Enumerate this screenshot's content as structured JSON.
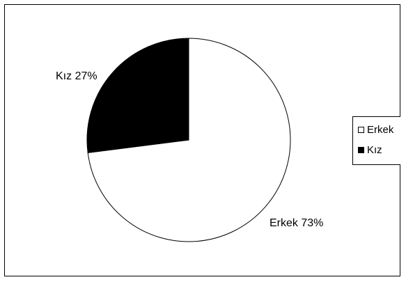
{
  "chart_data": {
    "type": "pie",
    "categories": [
      "Erkek",
      "Kız"
    ],
    "values": [
      73,
      27
    ],
    "slice_labels": [
      "Erkek 73%",
      "Kız 27%"
    ],
    "colors": [
      "#ffffff",
      "#000000"
    ],
    "outline_color": "#000000",
    "start_angle_deg": 0,
    "direction": "clockwise",
    "legend": {
      "position": "right",
      "entries": [
        "Erkek",
        "Kız"
      ]
    }
  }
}
